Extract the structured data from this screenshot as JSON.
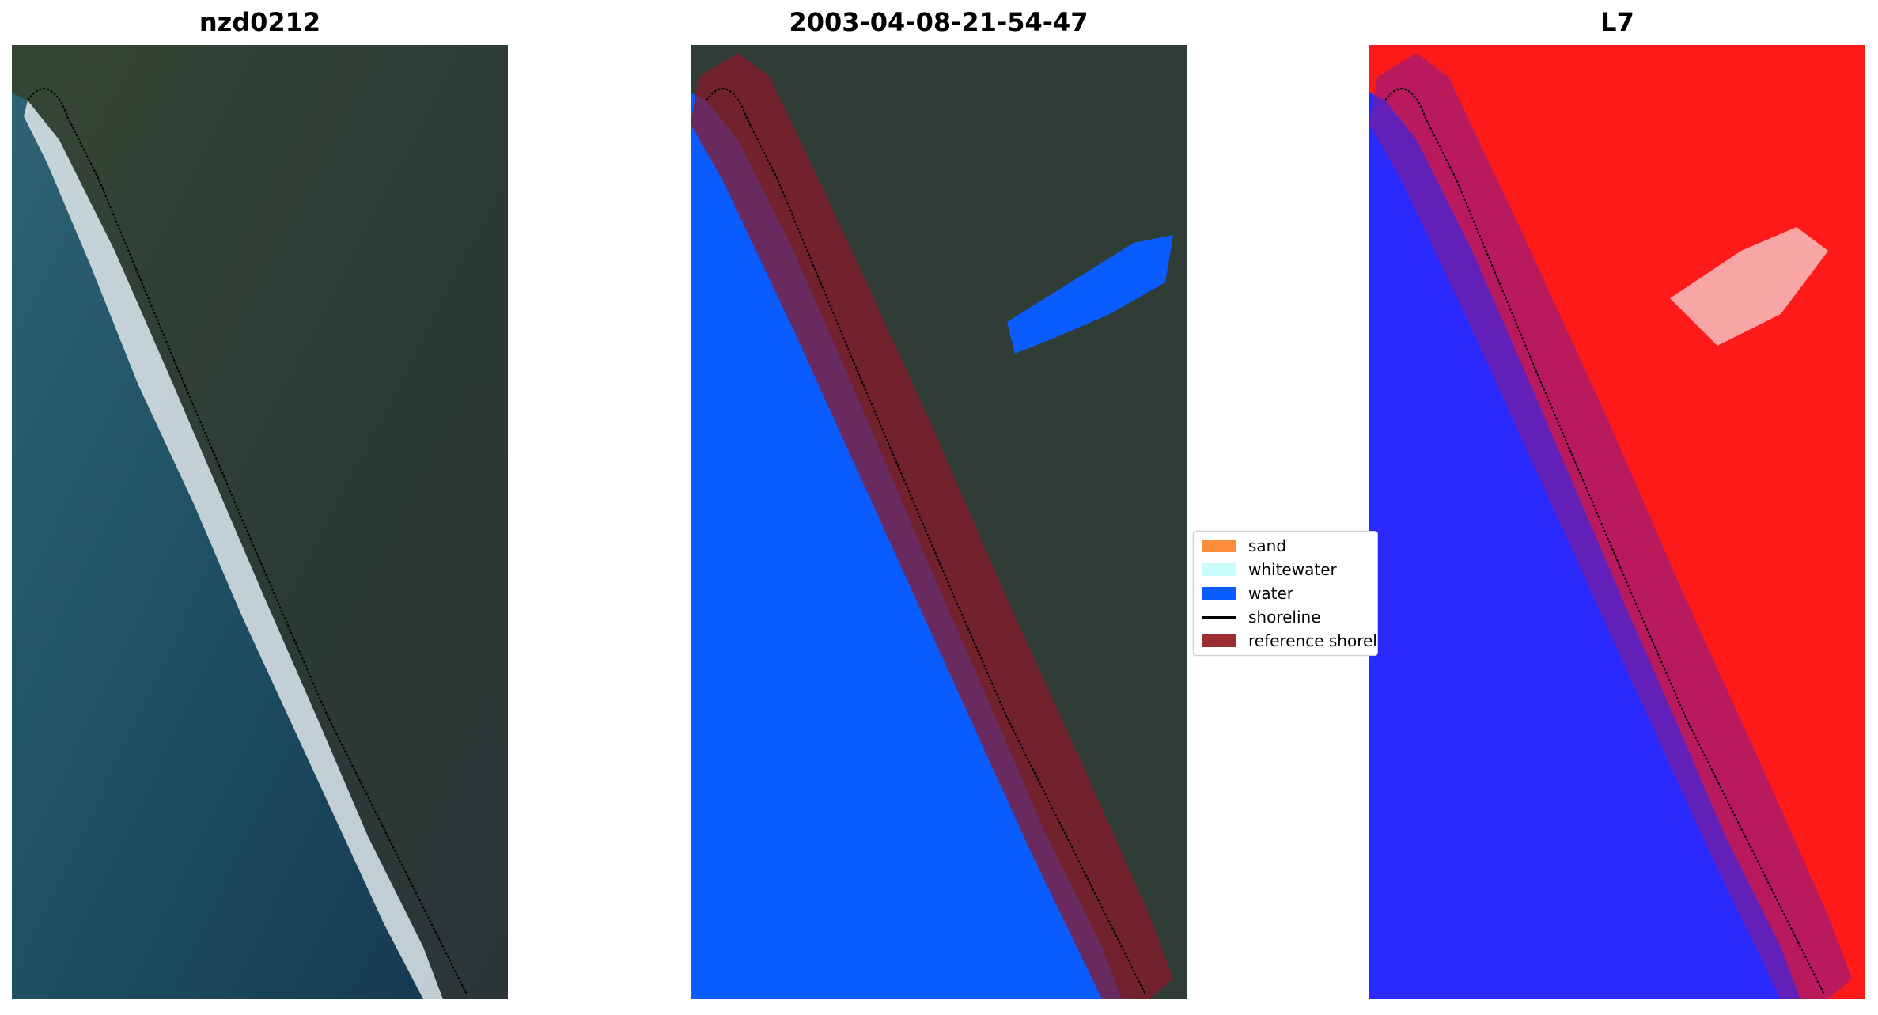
{
  "panels": [
    {
      "title": "nzd0212"
    },
    {
      "title": "2003-04-08-21-54-47"
    },
    {
      "title": "L7"
    }
  ],
  "legend": {
    "entries": [
      {
        "label": "sand",
        "color": "#ff8c3a",
        "kind": "patch"
      },
      {
        "label": "whitewater",
        "color": "#c9fbfb",
        "kind": "patch"
      },
      {
        "label": "water",
        "color": "#0a5cff",
        "kind": "patch"
      },
      {
        "label": "shoreline",
        "color": "#000000",
        "kind": "line"
      },
      {
        "label": "reference shoreline buffer",
        "color": "#9b2d30",
        "kind": "patch"
      }
    ]
  },
  "colors": {
    "ocean": "#1c4a5c",
    "land": "#2f3b33",
    "surf": "#e4ecee",
    "water_class": "#0a5cff",
    "buffer": "#8a1a2a",
    "index_water": "#2a2aff",
    "index_land": "#ff1a1a"
  }
}
